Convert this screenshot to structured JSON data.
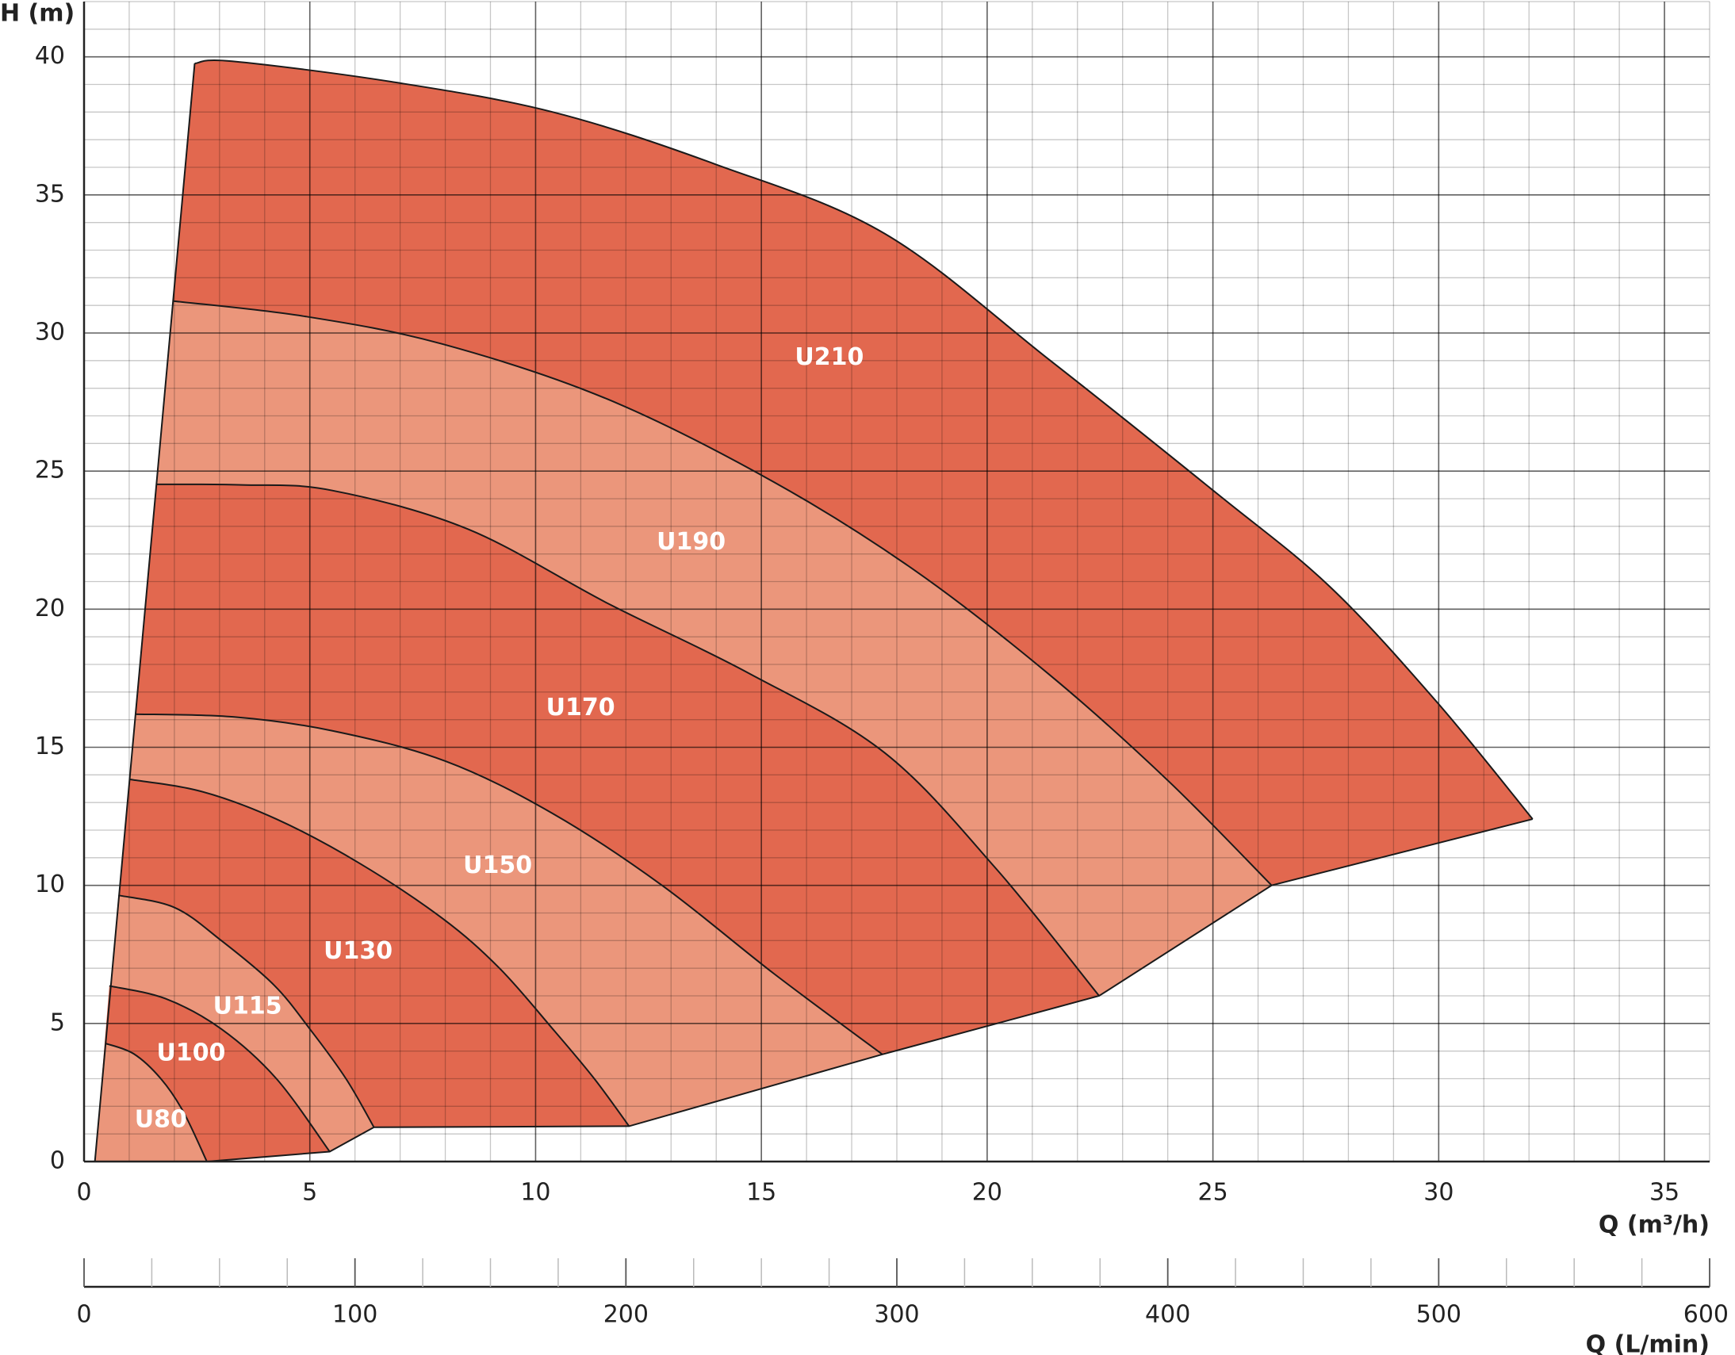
{
  "chart_data": {
    "type": "range",
    "xlabel": "Q (m³/h)",
    "ylabel": "H (m)",
    "x2label": "Q (L/min)",
    "xlim": [
      0,
      36
    ],
    "ylim": [
      0,
      42
    ],
    "x2lim": [
      0,
      600
    ],
    "xticks": [
      0,
      5,
      10,
      15,
      20,
      25,
      30,
      35
    ],
    "yticks": [
      0,
      5,
      10,
      15,
      20,
      25,
      30,
      35,
      40
    ],
    "x2ticks": [
      0,
      100,
      200,
      300,
      400,
      500,
      600
    ],
    "x2minorticks": [
      25,
      50,
      75,
      125,
      150,
      175,
      225,
      250,
      275,
      325,
      350,
      375,
      425,
      450,
      475,
      525,
      550,
      575
    ],
    "xgrid": [
      0,
      1,
      2,
      3,
      4,
      5,
      6,
      7,
      8,
      9,
      10,
      11,
      12,
      13,
      14,
      15,
      16,
      17,
      18,
      19,
      20,
      21,
      22,
      23,
      24,
      25,
      26,
      27,
      28,
      29,
      30,
      31,
      32,
      33,
      34,
      35,
      36
    ],
    "ygrid": [
      0,
      1,
      2,
      3,
      4,
      5,
      6,
      7,
      8,
      9,
      10,
      11,
      12,
      13,
      14,
      15,
      16,
      17,
      18,
      19,
      20,
      21,
      22,
      23,
      24,
      25,
      26,
      27,
      28,
      29,
      30,
      31,
      32,
      33,
      34,
      35,
      36,
      37,
      38,
      39,
      40,
      41,
      42
    ],
    "grid": true,
    "min_flow_x": 0.24,
    "series": [
      {
        "name": "U80",
        "color": "#eb967b",
        "x": [
          0.47,
          1.1,
          1.7,
          2.2,
          2.72
        ],
        "values": [
          4.28,
          3.9,
          3.0,
          1.8,
          0
        ]
      },
      {
        "name": "U100",
        "color": "#e2684f",
        "x": [
          0.56,
          1.8,
          3.04,
          4.26,
          5.44
        ],
        "values": [
          6.36,
          5.9,
          4.8,
          3.0,
          0.36
        ]
      },
      {
        "name": "U115",
        "color": "#eb967b",
        "x": [
          0.76,
          2.0,
          3.04,
          4.2,
          5.0,
          5.8,
          6.42
        ],
        "values": [
          9.64,
          9.2,
          8.0,
          6.4,
          4.8,
          3.0,
          1.24
        ]
      },
      {
        "name": "U130",
        "color": "#e2684f",
        "x": [
          1.0,
          2.6,
          4.26,
          6.1,
          7.94,
          9.2,
          10.38,
          11.3,
          12.07
        ],
        "values": [
          13.84,
          13.4,
          12.4,
          10.8,
          8.8,
          7.0,
          4.8,
          3.0,
          1.28
        ]
      },
      {
        "name": "U150",
        "color": "#eb967b",
        "x": [
          1.13,
          3.3,
          5.49,
          8.0,
          10.38,
          12.8,
          15.28,
          17.68
        ],
        "values": [
          16.2,
          16.1,
          15.6,
          14.5,
          12.6,
          10.0,
          6.8,
          3.88
        ]
      },
      {
        "name": "U170",
        "color": "#e2684f",
        "x": [
          1.59,
          3.5,
          5.49,
          8.5,
          11.61,
          14.7,
          17.73,
          20.2,
          22.48
        ],
        "values": [
          24.52,
          24.5,
          24.3,
          22.9,
          20.2,
          17.7,
          14.8,
          10.6,
          6.0
        ]
      },
      {
        "name": "U190",
        "color": "#eb967b",
        "x": [
          1.96,
          4.9,
          7.94,
          11.6,
          15.28,
          18.4,
          21.4,
          24.0,
          26.3
        ],
        "values": [
          31.16,
          30.6,
          29.6,
          27.6,
          24.6,
          21.4,
          17.6,
          13.8,
          10.0
        ]
      },
      {
        "name": "U210",
        "color": "#e2684f",
        "x": [
          2.45,
          3.28,
          6.8,
          10.38,
          14.0,
          17.73,
          21.4,
          25.08,
          27.6,
          29.98,
          32.08
        ],
        "values": [
          39.76,
          39.84,
          39.1,
          38.0,
          36.1,
          33.6,
          29.0,
          24.2,
          20.8,
          16.6,
          12.4
        ]
      }
    ]
  }
}
